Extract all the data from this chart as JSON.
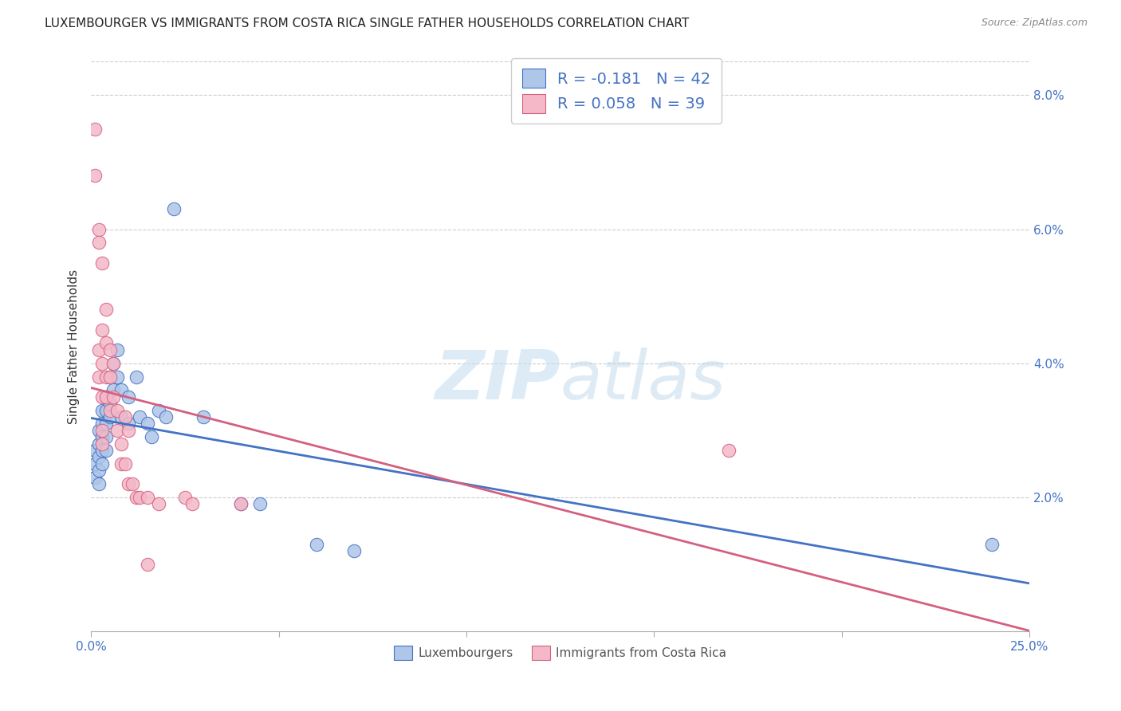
{
  "title": "LUXEMBOURGER VS IMMIGRANTS FROM COSTA RICA SINGLE FATHER HOUSEHOLDS CORRELATION CHART",
  "source": "Source: ZipAtlas.com",
  "ylabel": "Single Father Households",
  "legend_label1": "Luxembourgers",
  "legend_label2": "Immigrants from Costa Rica",
  "r1": -0.181,
  "n1": 42,
  "r2": 0.058,
  "n2": 39,
  "color1": "#aec6e8",
  "color2": "#f4b8c8",
  "line_color1": "#4472c4",
  "line_color2": "#d46080",
  "watermark_zip": "ZIP",
  "watermark_atlas": "atlas",
  "xlim": [
    0.0,
    0.25
  ],
  "ylim": [
    0.0,
    0.085
  ],
  "xticks": [
    0.0,
    0.05,
    0.1,
    0.15,
    0.2,
    0.25
  ],
  "yticks_right": [
    0.02,
    0.04,
    0.06,
    0.08
  ],
  "ytick_labels_right": [
    "2.0%",
    "4.0%",
    "6.0%",
    "8.0%"
  ],
  "blue_points": [
    [
      0.001,
      0.027
    ],
    [
      0.001,
      0.025
    ],
    [
      0.001,
      0.023
    ],
    [
      0.002,
      0.03
    ],
    [
      0.002,
      0.028
    ],
    [
      0.002,
      0.026
    ],
    [
      0.002,
      0.024
    ],
    [
      0.002,
      0.022
    ],
    [
      0.003,
      0.033
    ],
    [
      0.003,
      0.031
    ],
    [
      0.003,
      0.029
    ],
    [
      0.003,
      0.027
    ],
    [
      0.003,
      0.025
    ],
    [
      0.004,
      0.035
    ],
    [
      0.004,
      0.033
    ],
    [
      0.004,
      0.031
    ],
    [
      0.004,
      0.029
    ],
    [
      0.004,
      0.027
    ],
    [
      0.005,
      0.038
    ],
    [
      0.005,
      0.034
    ],
    [
      0.005,
      0.032
    ],
    [
      0.006,
      0.04
    ],
    [
      0.006,
      0.036
    ],
    [
      0.007,
      0.042
    ],
    [
      0.007,
      0.038
    ],
    [
      0.008,
      0.036
    ],
    [
      0.008,
      0.032
    ],
    [
      0.01,
      0.035
    ],
    [
      0.01,
      0.031
    ],
    [
      0.012,
      0.038
    ],
    [
      0.013,
      0.032
    ],
    [
      0.015,
      0.031
    ],
    [
      0.016,
      0.029
    ],
    [
      0.018,
      0.033
    ],
    [
      0.02,
      0.032
    ],
    [
      0.022,
      0.063
    ],
    [
      0.03,
      0.032
    ],
    [
      0.04,
      0.019
    ],
    [
      0.045,
      0.019
    ],
    [
      0.06,
      0.013
    ],
    [
      0.07,
      0.012
    ],
    [
      0.24,
      0.013
    ]
  ],
  "pink_points": [
    [
      0.001,
      0.075
    ],
    [
      0.001,
      0.068
    ],
    [
      0.002,
      0.06
    ],
    [
      0.002,
      0.058
    ],
    [
      0.002,
      0.042
    ],
    [
      0.002,
      0.038
    ],
    [
      0.003,
      0.055
    ],
    [
      0.003,
      0.045
    ],
    [
      0.003,
      0.04
    ],
    [
      0.003,
      0.035
    ],
    [
      0.003,
      0.03
    ],
    [
      0.003,
      0.028
    ],
    [
      0.004,
      0.048
    ],
    [
      0.004,
      0.043
    ],
    [
      0.004,
      0.038
    ],
    [
      0.004,
      0.035
    ],
    [
      0.005,
      0.042
    ],
    [
      0.005,
      0.038
    ],
    [
      0.005,
      0.033
    ],
    [
      0.006,
      0.04
    ],
    [
      0.006,
      0.035
    ],
    [
      0.007,
      0.033
    ],
    [
      0.007,
      0.03
    ],
    [
      0.008,
      0.028
    ],
    [
      0.008,
      0.025
    ],
    [
      0.009,
      0.032
    ],
    [
      0.009,
      0.025
    ],
    [
      0.01,
      0.03
    ],
    [
      0.01,
      0.022
    ],
    [
      0.011,
      0.022
    ],
    [
      0.012,
      0.02
    ],
    [
      0.013,
      0.02
    ],
    [
      0.015,
      0.02
    ],
    [
      0.015,
      0.01
    ],
    [
      0.018,
      0.019
    ],
    [
      0.025,
      0.02
    ],
    [
      0.027,
      0.019
    ],
    [
      0.04,
      0.019
    ],
    [
      0.17,
      0.027
    ]
  ]
}
